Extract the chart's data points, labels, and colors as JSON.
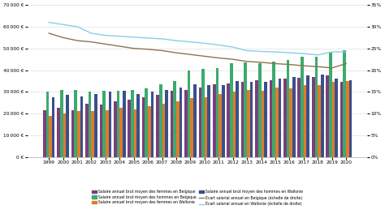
{
  "years": [
    1999,
    2000,
    2001,
    2002,
    2003,
    2004,
    2005,
    2006,
    2007,
    2008,
    2009,
    2010,
    2011,
    2012,
    2013,
    2014,
    2015,
    2016,
    2017,
    2018,
    2019,
    2020
  ],
  "femmes_belgique": [
    21500,
    22500,
    21500,
    24500,
    24000,
    25500,
    26500,
    27500,
    28500,
    30500,
    31000,
    32000,
    33500,
    34000,
    34500,
    35500,
    35500,
    36000,
    36500,
    37000,
    37500,
    34500
  ],
  "hommes_belgique": [
    30000,
    31000,
    31000,
    30000,
    30500,
    30500,
    31000,
    31500,
    33500,
    35000,
    40000,
    40500,
    41000,
    43000,
    43500,
    43000,
    44000,
    44500,
    46000,
    46000,
    48000,
    49000
  ],
  "femmes_wallonie": [
    19000,
    20000,
    21000,
    21000,
    21500,
    22500,
    22000,
    23500,
    24500,
    25500,
    27000,
    27500,
    29000,
    30000,
    31000,
    30500,
    32000,
    31500,
    33000,
    33000,
    34500,
    35000
  ],
  "hommes_wallonie": [
    27500,
    28500,
    28000,
    29000,
    30000,
    30500,
    29000,
    30000,
    31000,
    32000,
    33500,
    33000,
    33000,
    35000,
    34500,
    34500,
    36000,
    37000,
    37500,
    38000,
    36000,
    35500
  ],
  "ecart_belgique": [
    0.285,
    0.275,
    0.268,
    0.265,
    0.26,
    0.255,
    0.25,
    0.248,
    0.245,
    0.24,
    0.236,
    0.232,
    0.228,
    0.225,
    0.22,
    0.218,
    0.215,
    0.213,
    0.21,
    0.208,
    0.205,
    0.215
  ],
  "ecart_wallonie": [
    0.31,
    0.305,
    0.3,
    0.285,
    0.28,
    0.278,
    0.276,
    0.274,
    0.272,
    0.268,
    0.265,
    0.262,
    0.258,
    0.253,
    0.245,
    0.243,
    0.242,
    0.24,
    0.238,
    0.235,
    0.242,
    0.242
  ],
  "color_femmes_belgique": "#7B3F7B",
  "color_hommes_belgique": "#3DAA6E",
  "color_femmes_wallonie": "#E07B2A",
  "color_hommes_wallonie": "#3A4F8C",
  "color_ecart_belgique": "#8B7355",
  "color_ecart_wallonie": "#87CEEB",
  "ylim_left": [
    0,
    70000
  ],
  "ylim_right": [
    0,
    0.35
  ],
  "yticks_left": [
    0,
    10000,
    20000,
    30000,
    40000,
    50000,
    60000,
    70000
  ],
  "yticks_right": [
    0,
    0.05,
    0.1,
    0.15,
    0.2,
    0.25,
    0.3,
    0.35
  ],
  "legend_labels_row1": [
    "Salaire annuel brut moyen des femmes en Belgique",
    "Salaire annuel brut moyen des hommes en Belgique"
  ],
  "legend_labels_row2": [
    "Salaire annuel brut moyen des femmes en Wallonie",
    "Salaire annuel brut moyen des hommes en Wallonie"
  ],
  "legend_labels_row3": [
    "Écart salarial annuel en Belgique (échelle de droite)",
    "Écart salarial annuel en Wallonie (échelle de droite)"
  ],
  "bar_width": 0.21,
  "figsize": [
    4.74,
    2.69
  ],
  "dpi": 100
}
